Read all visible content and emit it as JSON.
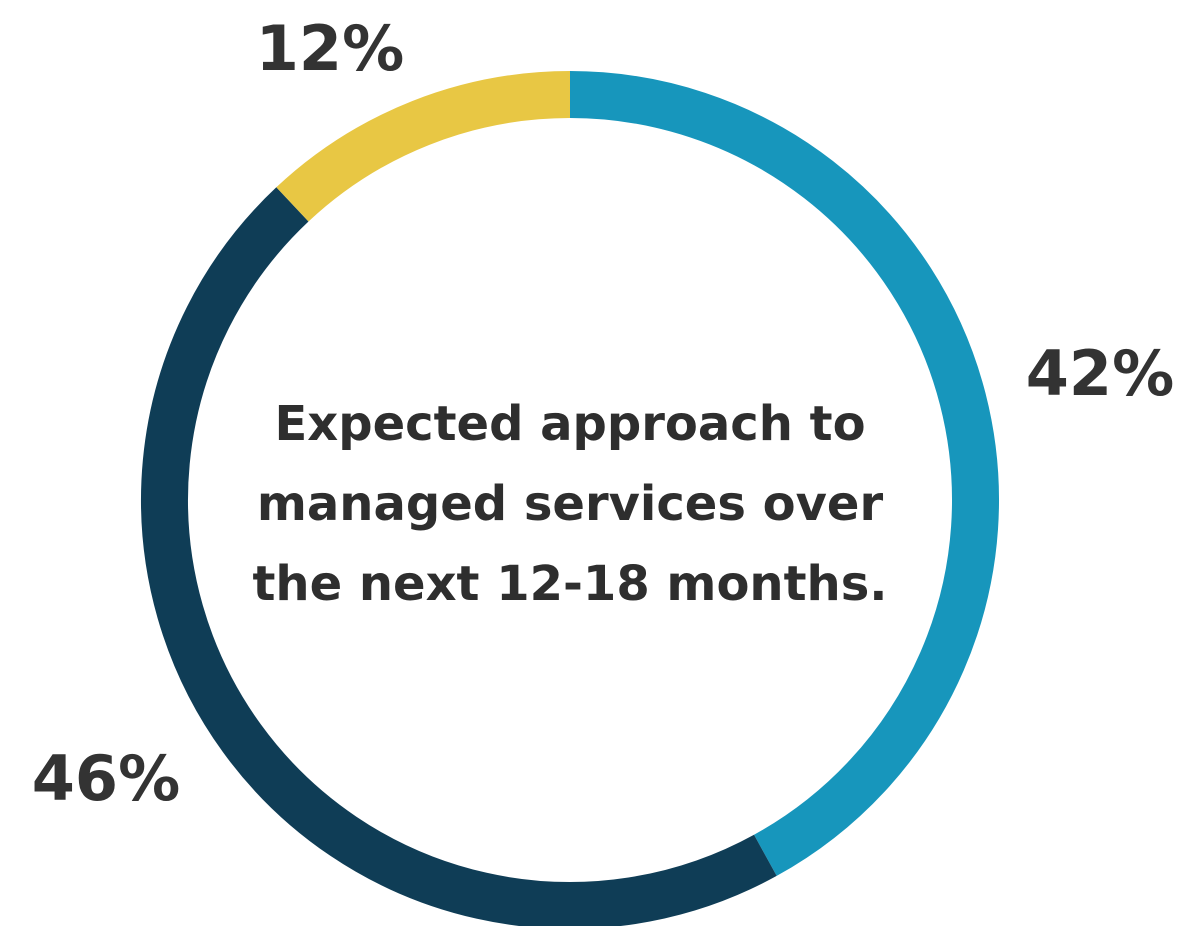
{
  "chart_data": {
    "type": "pie",
    "donut": true,
    "title_lines": [
      "Expected approach to",
      "managed services over",
      "the next 12-18 months."
    ],
    "slices": [
      {
        "value": 42,
        "label": "42%",
        "color": "#1796bc"
      },
      {
        "value": 46,
        "label": "46%",
        "color": "#0f3d56"
      },
      {
        "value": 12,
        "label": "12%",
        "color": "#e8c744"
      }
    ],
    "start": "top",
    "direction": "clockwise",
    "legend": "none"
  }
}
